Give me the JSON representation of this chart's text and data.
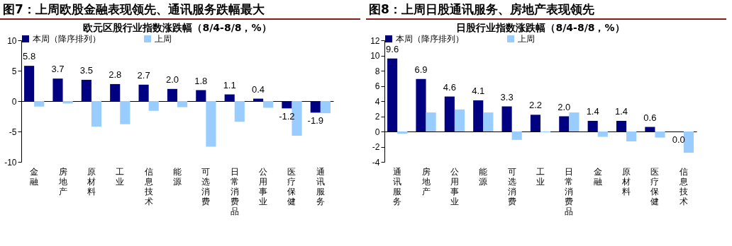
{
  "chart_data": [
    {
      "type": "bar",
      "title": "图7：上周欧股金融表现领先、通讯服务跌幅最大",
      "subtitle": "欧元区股行业指数涨跌幅（8/4-8/8，%）",
      "categories": [
        "金融",
        "房地产",
        "原材料",
        "工业",
        "信息技术",
        "能源",
        "可选消费",
        "日常消费品",
        "公用事业",
        "医疗保健",
        "通讯服务"
      ],
      "series": [
        {
          "name": "本周（降序排列）",
          "color": "#000080",
          "values": [
            5.8,
            3.7,
            3.5,
            2.8,
            2.7,
            2.0,
            1.8,
            1.1,
            0.4,
            -1.2,
            -1.9
          ],
          "value_labels": [
            "5.8",
            "3.7",
            "3.5",
            "2.8",
            "2.7",
            "2.0",
            "1.8",
            "1.1",
            "0.4",
            "-1.2",
            "-1.9"
          ]
        },
        {
          "name": "上周",
          "color": "#99ccff",
          "values": [
            -0.9,
            -0.4,
            -4.2,
            -3.8,
            -1.6,
            -1.0,
            -7.5,
            -3.4,
            -1.1,
            -5.7,
            -2.0
          ]
        }
      ],
      "ylim": [
        -10,
        10
      ],
      "yticks": [
        -10,
        -5,
        0,
        5,
        10
      ],
      "legend": "top"
    },
    {
      "type": "bar",
      "title": "图8：上周日股通讯服务、房地产表现领先",
      "subtitle": "日股行业指数涨跌幅（8/4-8/8，%）",
      "categories": [
        "通讯服务",
        "房地产",
        "公用事业",
        "能源",
        "可选消费",
        "工业",
        "日常消费品",
        "金融",
        "原材料",
        "医疗保健",
        "信息技术"
      ],
      "series": [
        {
          "name": "本周（降序排列）",
          "color": "#000080",
          "values": [
            9.6,
            6.9,
            4.6,
            4.1,
            3.3,
            2.2,
            2.0,
            1.4,
            1.4,
            0.6,
            0.0
          ],
          "value_labels": [
            "9.6",
            "6.9",
            "4.6",
            "4.1",
            "3.3",
            "2.2",
            "2.0",
            "1.4",
            "1.4",
            "0.6",
            "0.0"
          ]
        },
        {
          "name": "上周",
          "color": "#99ccff",
          "values": [
            -0.3,
            2.5,
            2.9,
            2.5,
            -1.1,
            -0.1,
            2.5,
            -0.7,
            -1.3,
            -0.8,
            -2.8
          ]
        }
      ],
      "ylim": [
        -4,
        12
      ],
      "yticks": [
        -4,
        -2,
        0,
        2,
        4,
        6,
        8,
        10,
        12
      ],
      "legend": "top"
    }
  ]
}
